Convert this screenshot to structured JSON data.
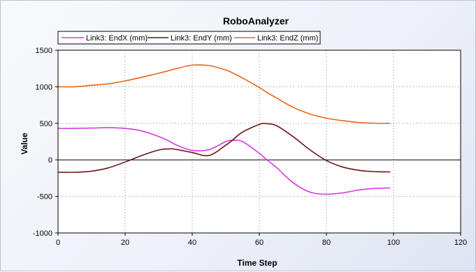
{
  "chart_data": {
    "type": "line",
    "title": "RoboAnalyzer",
    "xlabel": "Time Step",
    "ylabel": "Value",
    "xlim": [
      0,
      120
    ],
    "ylim": [
      -1000,
      1500
    ],
    "xticks": [
      0,
      20,
      40,
      60,
      80,
      100,
      120
    ],
    "yticks": [
      -1000,
      -500,
      0,
      500,
      1000,
      1500
    ],
    "grid": true,
    "legend_position": "top-left",
    "x": [
      0,
      5,
      10,
      15,
      20,
      25,
      30,
      33,
      35,
      40,
      45,
      50,
      52,
      55,
      60,
      62,
      65,
      70,
      75,
      80,
      85,
      90,
      95,
      99
    ],
    "series": [
      {
        "name": "Link3: EndX (mm)",
        "color": "#d23be0",
        "values": [
          430,
          430,
          435,
          440,
          430,
          395,
          320,
          260,
          210,
          130,
          140,
          250,
          265,
          250,
          90,
          10,
          -100,
          -310,
          -440,
          -470,
          -450,
          -410,
          -390,
          -385
        ]
      },
      {
        "name": "Link3: EndY (mm)",
        "color": "#6e1414",
        "values": [
          -170,
          -170,
          -155,
          -110,
          -30,
          60,
          135,
          150,
          145,
          100,
          60,
          200,
          270,
          380,
          485,
          495,
          470,
          320,
          140,
          -10,
          -100,
          -145,
          -162,
          -165
        ]
      },
      {
        "name": "Link3: EndZ (mm)",
        "color": "#e8651a",
        "values": [
          1000,
          1000,
          1020,
          1040,
          1080,
          1130,
          1185,
          1220,
          1245,
          1295,
          1290,
          1230,
          1190,
          1120,
          990,
          930,
          850,
          720,
          630,
          570,
          535,
          510,
          500,
          500
        ]
      }
    ]
  }
}
